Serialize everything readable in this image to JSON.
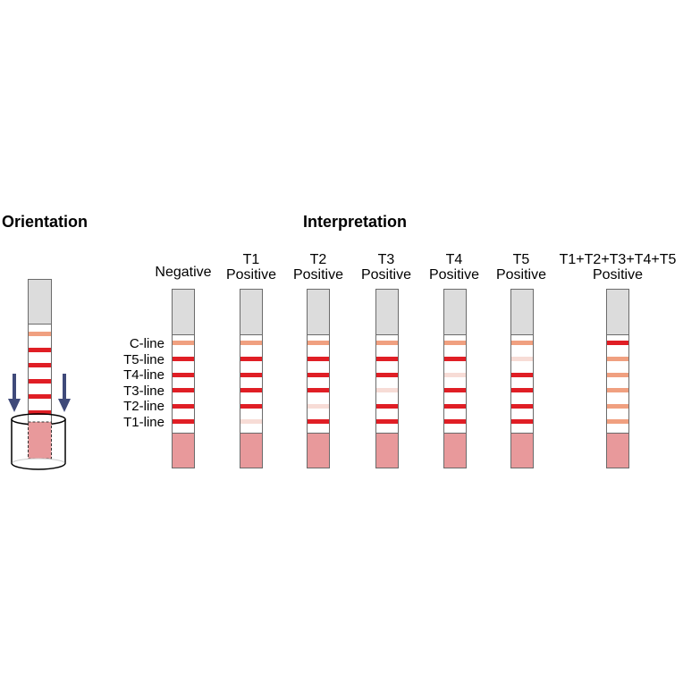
{
  "orientation": {
    "title": "Orientation",
    "arrow_color": "#3f4a7a"
  },
  "interpretation": {
    "title": "Interpretation",
    "line_labels": [
      "C-line",
      "T5-line",
      "T4-line",
      "T3-line",
      "T2-line",
      "T1-line"
    ],
    "strips": [
      {
        "label_1": "",
        "label_2": "Negative",
        "bands": [
          "control",
          "strong",
          "strong",
          "strong",
          "strong",
          "strong"
        ]
      },
      {
        "label_1": "T1",
        "label_2": "Positive",
        "bands": [
          "control",
          "strong",
          "strong",
          "strong",
          "strong",
          "faint"
        ]
      },
      {
        "label_1": "T2",
        "label_2": "Positive",
        "bands": [
          "control",
          "strong",
          "strong",
          "strong",
          "faint",
          "strong"
        ]
      },
      {
        "label_1": "T3",
        "label_2": "Positive",
        "bands": [
          "control",
          "strong",
          "strong",
          "faint",
          "strong",
          "strong"
        ]
      },
      {
        "label_1": "T4",
        "label_2": "Positive",
        "bands": [
          "control",
          "strong",
          "faint",
          "strong",
          "strong",
          "strong"
        ]
      },
      {
        "label_1": "T5",
        "label_2": "Positive",
        "bands": [
          "control",
          "faint",
          "strong",
          "strong",
          "strong",
          "strong"
        ]
      },
      {
        "label_1": "T1+T2+T3+T4+T5",
        "label_2": "Positive",
        "bands": [
          "strong",
          "control",
          "control",
          "control",
          "control",
          "control"
        ]
      }
    ]
  },
  "colors": {
    "strong_line": "#e01e25",
    "control_line": "#f0a080",
    "faint_line": "#f7dcd6",
    "sample_pad": "#e8999b",
    "handle": "#dcdcdc"
  }
}
